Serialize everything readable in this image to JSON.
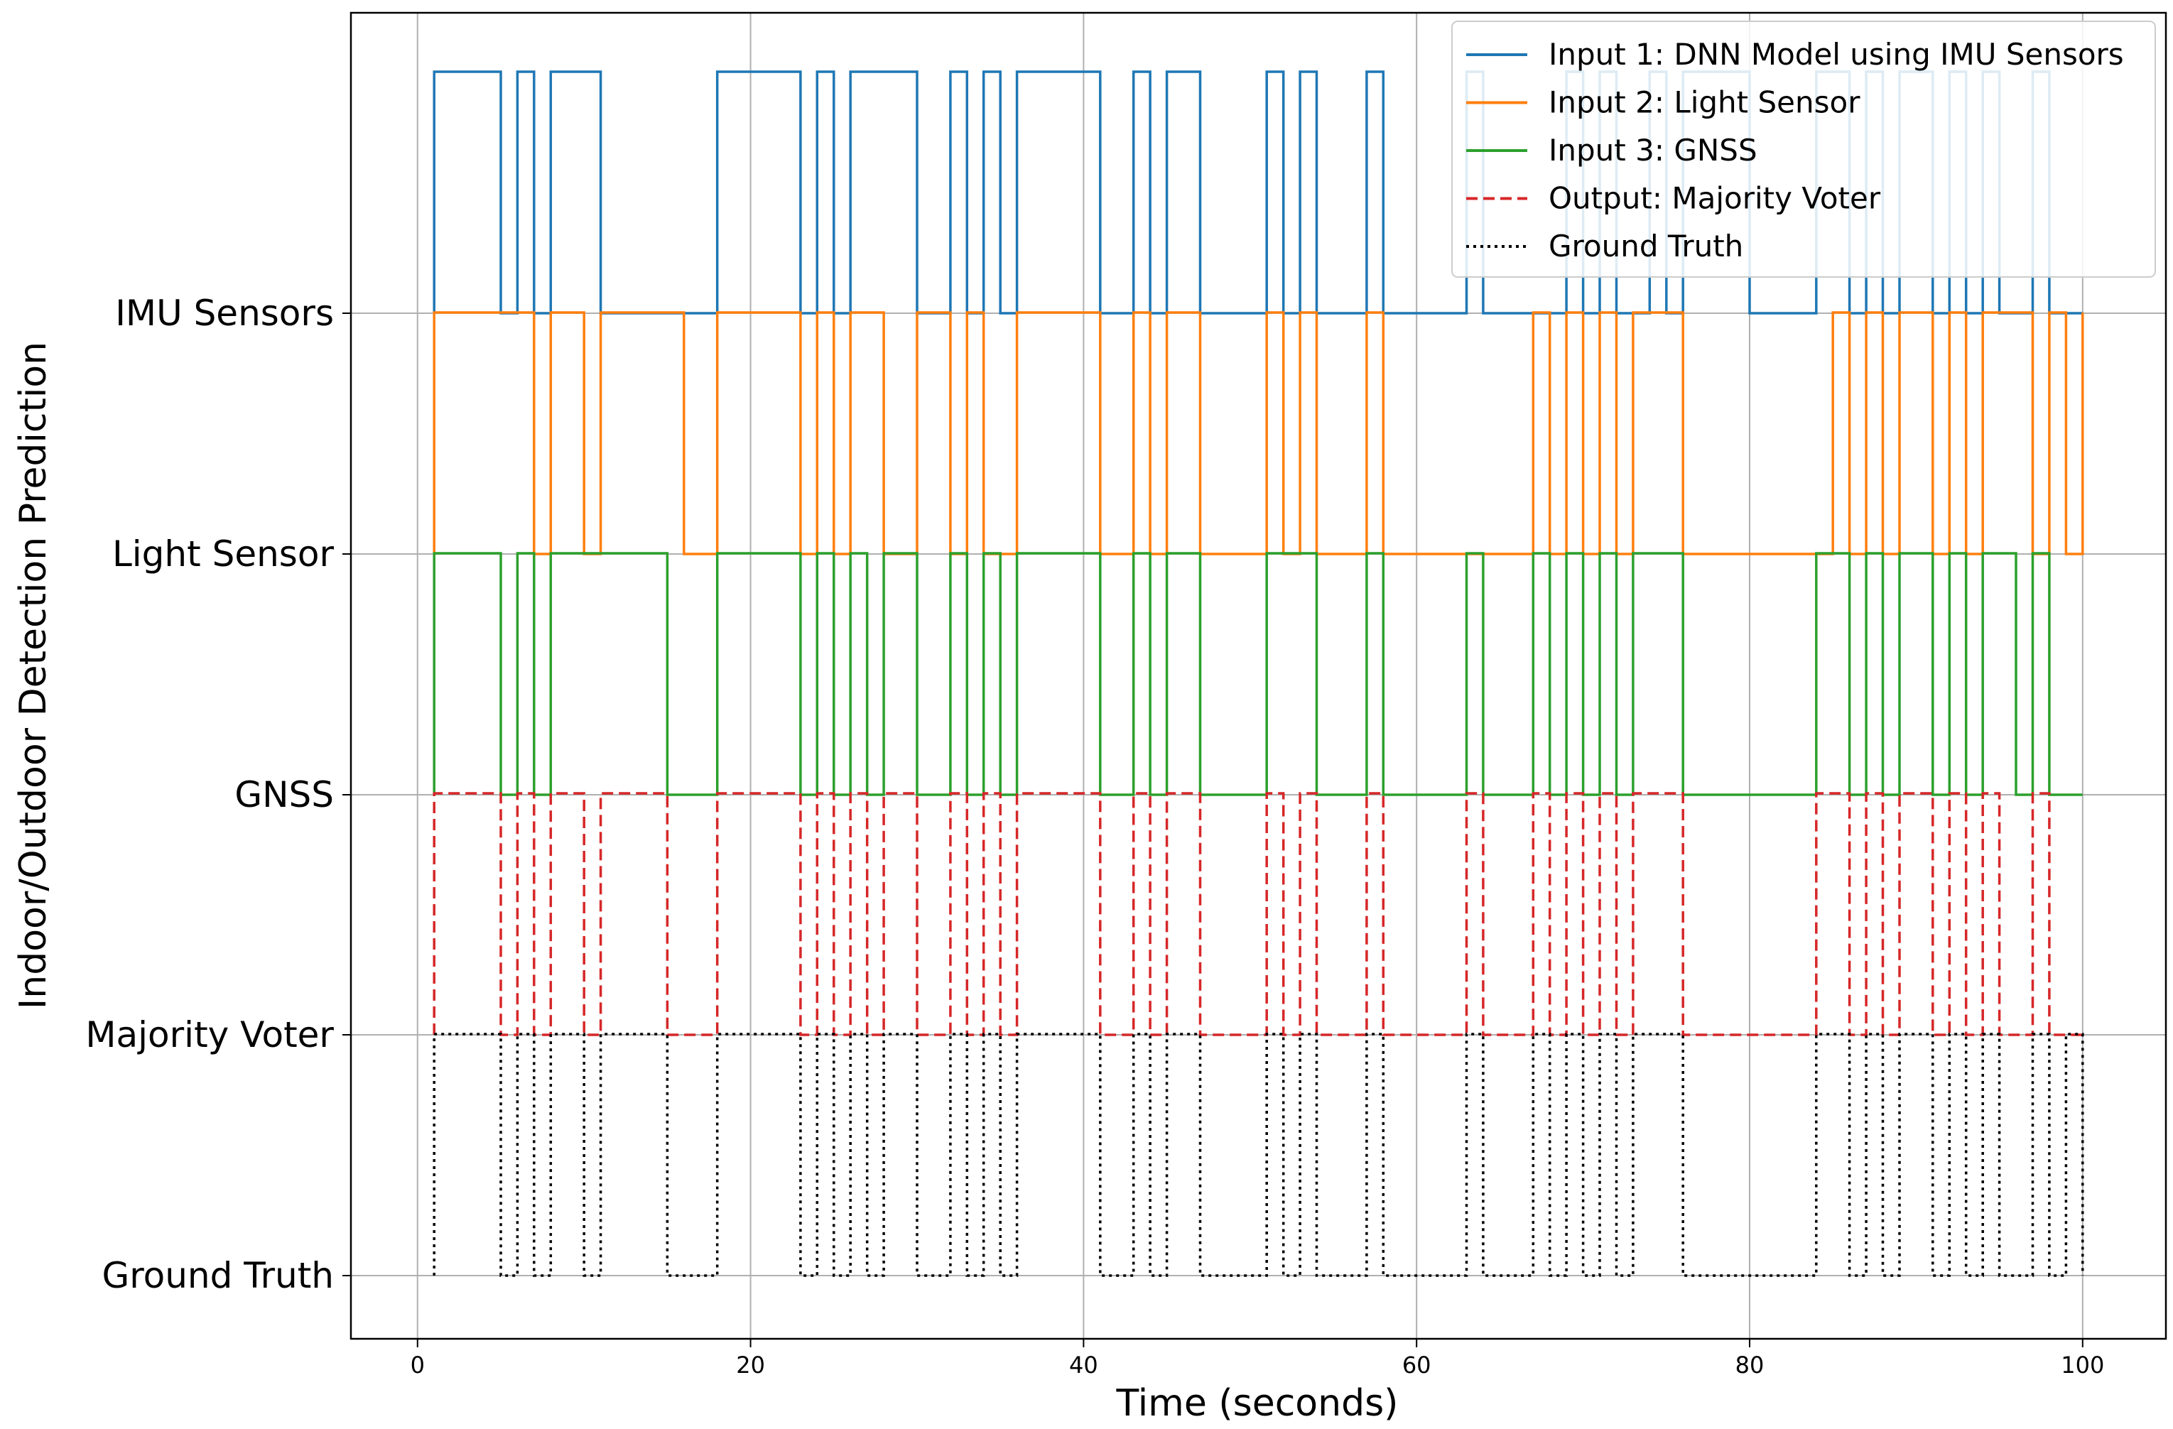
{
  "chart_data": {
    "type": "line",
    "title": "",
    "xlabel": "Time (seconds)",
    "ylabel": "Indoor/Outdoor Detection Prediction",
    "xlim": [
      -4,
      105
    ],
    "xticks": [
      0,
      20,
      40,
      60,
      80,
      100
    ],
    "grid": true,
    "legend_position": "top-right",
    "categories": [
      "IMU Sensors",
      "Light Sensor",
      "GNSS",
      "Majority Voter",
      "Ground Truth"
    ],
    "series": [
      {
        "name": "Input 1: DNN Model using IMU Sensors",
        "color": "#1f77b4",
        "style": "solid",
        "baseline": "IMU Sensors",
        "high_intervals": [
          [
            1,
            5
          ],
          [
            6,
            7
          ],
          [
            8,
            11
          ],
          [
            18,
            23
          ],
          [
            24,
            25
          ],
          [
            26,
            30
          ],
          [
            32,
            33
          ],
          [
            34,
            35
          ],
          [
            36,
            41
          ],
          [
            43,
            44
          ],
          [
            45,
            47
          ],
          [
            51,
            52
          ],
          [
            53,
            54
          ],
          [
            57,
            58
          ],
          [
            63,
            64
          ],
          [
            69,
            70
          ],
          [
            71,
            72
          ],
          [
            74,
            75
          ],
          [
            76,
            80
          ],
          [
            84,
            86
          ],
          [
            87,
            88
          ],
          [
            89,
            91
          ],
          [
            92,
            93
          ],
          [
            94,
            95
          ],
          [
            97,
            98
          ]
        ]
      },
      {
        "name": "Input 2: Light Sensor",
        "color": "#ff7f0e",
        "style": "solid",
        "baseline": "Light Sensor",
        "high_intervals": [
          [
            1,
            7
          ],
          [
            8,
            10
          ],
          [
            11,
            16
          ],
          [
            18,
            23
          ],
          [
            24,
            25
          ],
          [
            26,
            28
          ],
          [
            30,
            32
          ],
          [
            33,
            34
          ],
          [
            36,
            41
          ],
          [
            43,
            44
          ],
          [
            45,
            47
          ],
          [
            51,
            52
          ],
          [
            53,
            54
          ],
          [
            57,
            58
          ],
          [
            67,
            68
          ],
          [
            69,
            70
          ],
          [
            71,
            72
          ],
          [
            73,
            76
          ],
          [
            85,
            86
          ],
          [
            87,
            88
          ],
          [
            89,
            91
          ],
          [
            92,
            93
          ],
          [
            94,
            97
          ],
          [
            98,
            99
          ],
          [
            100,
            100
          ]
        ]
      },
      {
        "name": "Input 3: GNSS",
        "color": "#2ca02c",
        "style": "solid",
        "baseline": "GNSS",
        "high_intervals": [
          [
            1,
            5
          ],
          [
            6,
            7
          ],
          [
            8,
            15
          ],
          [
            18,
            23
          ],
          [
            24,
            25
          ],
          [
            26,
            27
          ],
          [
            28,
            30
          ],
          [
            32,
            33
          ],
          [
            34,
            35
          ],
          [
            36,
            41
          ],
          [
            43,
            44
          ],
          [
            45,
            47
          ],
          [
            51,
            54
          ],
          [
            57,
            58
          ],
          [
            63,
            64
          ],
          [
            67,
            68
          ],
          [
            69,
            70
          ],
          [
            71,
            72
          ],
          [
            73,
            76
          ],
          [
            84,
            86
          ],
          [
            87,
            88
          ],
          [
            89,
            91
          ],
          [
            92,
            93
          ],
          [
            94,
            96
          ],
          [
            97,
            98
          ]
        ]
      },
      {
        "name": "Output: Majority Voter",
        "color": "#d62728",
        "style": "dashed",
        "baseline": "Majority Voter",
        "high_intervals": [
          [
            1,
            5
          ],
          [
            6,
            7
          ],
          [
            8,
            10
          ],
          [
            11,
            15
          ],
          [
            18,
            23
          ],
          [
            24,
            25
          ],
          [
            26,
            27
          ],
          [
            28,
            30
          ],
          [
            32,
            33
          ],
          [
            34,
            35
          ],
          [
            36,
            41
          ],
          [
            43,
            44
          ],
          [
            45,
            47
          ],
          [
            51,
            52
          ],
          [
            53,
            54
          ],
          [
            57,
            58
          ],
          [
            63,
            64
          ],
          [
            67,
            68
          ],
          [
            69,
            70
          ],
          [
            71,
            72
          ],
          [
            73,
            76
          ],
          [
            84,
            86
          ],
          [
            87,
            88
          ],
          [
            89,
            91
          ],
          [
            92,
            93
          ],
          [
            94,
            95
          ],
          [
            97,
            98
          ]
        ]
      },
      {
        "name": "Ground Truth",
        "color": "#000000",
        "style": "dotted",
        "baseline": "Ground Truth",
        "high_intervals": [
          [
            1,
            5
          ],
          [
            6,
            7
          ],
          [
            8,
            10
          ],
          [
            11,
            15
          ],
          [
            18,
            23
          ],
          [
            24,
            25
          ],
          [
            26,
            27
          ],
          [
            28,
            30
          ],
          [
            32,
            33
          ],
          [
            34,
            35
          ],
          [
            36,
            41
          ],
          [
            43,
            44
          ],
          [
            45,
            47
          ],
          [
            51,
            52
          ],
          [
            53,
            54
          ],
          [
            57,
            58
          ],
          [
            63,
            64
          ],
          [
            67,
            68
          ],
          [
            69,
            70
          ],
          [
            71,
            72
          ],
          [
            73,
            76
          ],
          [
            84,
            86
          ],
          [
            87,
            88
          ],
          [
            89,
            91
          ],
          [
            92,
            93
          ],
          [
            94,
            95
          ],
          [
            97,
            98
          ],
          [
            99,
            100
          ]
        ]
      }
    ]
  }
}
